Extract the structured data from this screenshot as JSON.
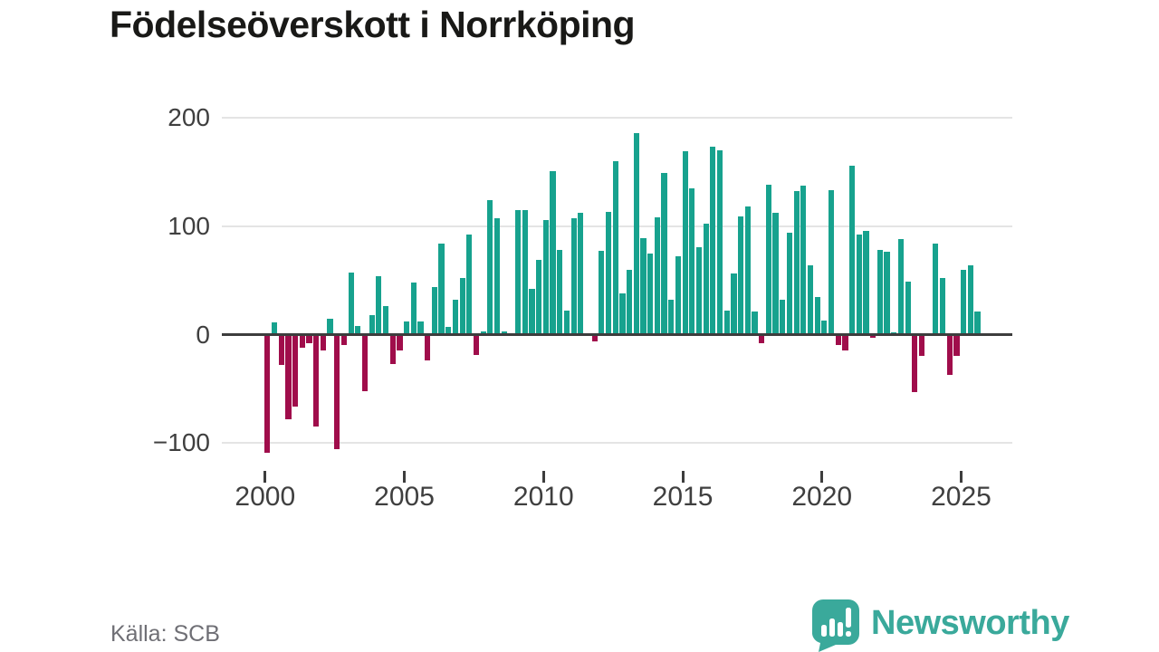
{
  "title": "Födelseöverskott i Norrköping",
  "source": "Källa: SCB",
  "branding": {
    "name": "Newsworthy",
    "logo_icon": "speech-bubble-bar-chart-exclamation"
  },
  "colors": {
    "positive_bar": "#17a28e",
    "negative_bar": "#a00d4b",
    "brand_teal": "#3aa99b",
    "axis_text": "#3f3f3f",
    "gridline": "#e4e4e4",
    "zero_line": "#3d3d3d",
    "title_text": "#191917",
    "source_text": "#6f6f75"
  },
  "chart_data": {
    "type": "bar",
    "title": "Födelseöverskott i Norrköping",
    "source": "Källa: SCB",
    "frequency": "quarterly",
    "start_period": "2000-Q1",
    "end_period": "2025-Q3",
    "grid": "horizontal",
    "legend": "none",
    "ylim": [
      -125,
      215
    ],
    "y_ticks": [
      200,
      100,
      0,
      -100
    ],
    "y_tick_labels": [
      "200",
      "100",
      "0",
      "−100"
    ],
    "x_tick_years": [
      2000,
      2005,
      2010,
      2015,
      2020,
      2025
    ],
    "x_tick_labels": [
      "2000",
      "2005",
      "2010",
      "2015",
      "2020",
      "2025"
    ],
    "positive_color": "#17a28e",
    "negative_color": "#a00d4b",
    "series": [
      {
        "name": "Födelseöverskott",
        "values": [
          -109,
          11,
          -28,
          -78,
          -66,
          -12,
          -8,
          -85,
          -15,
          15,
          -106,
          -10,
          57,
          8,
          -52,
          18,
          54,
          26,
          -27,
          -15,
          12,
          48,
          12,
          -24,
          44,
          84,
          7,
          32,
          52,
          92,
          -19,
          3,
          124,
          107,
          3,
          0,
          115,
          115,
          42,
          69,
          106,
          151,
          78,
          22,
          107,
          112,
          0,
          -6,
          77,
          113,
          160,
          38,
          60,
          186,
          89,
          75,
          108,
          149,
          32,
          72,
          169,
          135,
          81,
          102,
          173,
          170,
          22,
          56,
          109,
          118,
          21,
          -8,
          138,
          112,
          32,
          94,
          132,
          137,
          64,
          35,
          13,
          133,
          -10,
          -15,
          156,
          92,
          96,
          -3,
          78,
          76,
          2,
          88,
          49,
          -53,
          -20,
          1,
          84,
          52,
          -37,
          -20,
          60,
          64,
          21
        ]
      }
    ]
  }
}
